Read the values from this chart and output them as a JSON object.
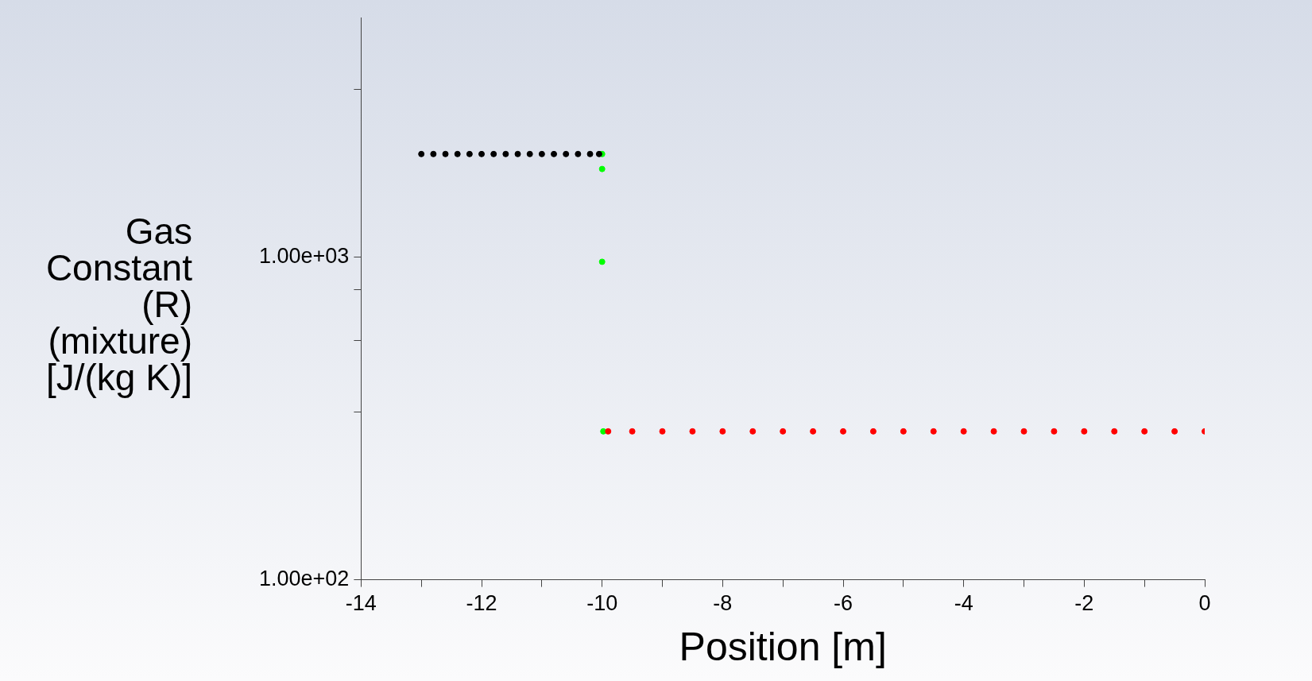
{
  "chart_data": {
    "type": "scatter",
    "xlabel": "Position [m]",
    "ylabel": "Gas Constant (R) (mixture) [J/(kg K)]",
    "xlim": [
      -14,
      0
    ],
    "xticks": [
      -14,
      {
        "value": -13,
        "label": null
      },
      -12,
      {
        "value": -11,
        "label": null
      },
      -10,
      {
        "value": -9,
        "label": null
      },
      -8,
      {
        "value": -7,
        "label": null
      },
      -6,
      {
        "value": -5,
        "label": null
      },
      -4,
      {
        "value": -3,
        "label": null
      },
      -2,
      {
        "value": -1,
        "label": null
      },
      0
    ],
    "ylim": [
      100,
      5500
    ],
    "yticks": [
      {
        "value": 100,
        "label": "1.00e+02"
      },
      {
        "value": 330,
        "label": null
      },
      {
        "value": 550,
        "label": null
      },
      {
        "value": 790,
        "label": null
      },
      {
        "value": 1000,
        "label": "1.00e+03"
      },
      {
        "value": 3300,
        "label": null
      }
    ],
    "log": "y",
    "grid": false,
    "legend": false,
    "marker": "circle",
    "series": [
      {
        "color": "#000000",
        "x": [
          -13,
          -12.8,
          -12.6,
          -12.4,
          -12.2,
          -12,
          -11.8,
          -11.6,
          -11.4,
          -11.2,
          -11,
          -10.8,
          -10.6,
          -10.4,
          -10.2,
          -10.05
        ],
        "values": [
          2080,
          2080,
          2080,
          2080,
          2080,
          2080,
          2080,
          2080,
          2080,
          2080,
          2080,
          2080,
          2080,
          2080,
          2080,
          2080
        ]
      },
      {
        "color": "#ff0000",
        "x": [
          -9.9,
          -9.5,
          -9,
          -8.5,
          -8,
          -7.5,
          -7,
          -6.5,
          -6,
          -5.5,
          -5,
          -4.5,
          -4,
          -3.5,
          -3,
          -2.5,
          -2,
          -1.5,
          -1,
          -0.5,
          0
        ],
        "values": [
          288,
          288,
          288,
          288,
          288,
          288,
          288,
          288,
          288,
          288,
          288,
          288,
          288,
          288,
          288,
          288,
          288,
          288,
          288,
          288,
          288
        ]
      },
      {
        "color": "#00ff00",
        "x": [
          -10,
          -10,
          -10,
          -9.98
        ],
        "values": [
          2080,
          1870,
          965,
          288
        ]
      }
    ]
  }
}
